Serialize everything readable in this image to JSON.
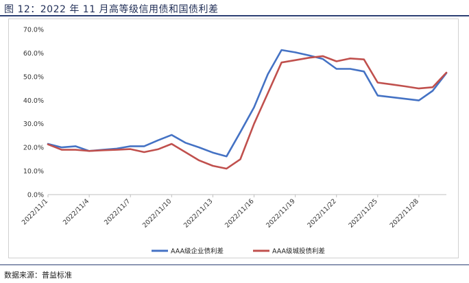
{
  "figure": {
    "title": "图 12：2022 年 11 月高等级信用债和国债利差",
    "source": "数据来源：普益标准"
  },
  "chart_data": {
    "type": "line",
    "title": "",
    "xlabel": "",
    "ylabel": "",
    "ylim": [
      0,
      70
    ],
    "y_tick_labels": [
      "0.0%",
      "10.0%",
      "20.0%",
      "30.0%",
      "40.0%",
      "50.0%",
      "60.0%",
      "70.0%"
    ],
    "x_tick_labels": [
      "2022/11/1",
      "2022/11/4",
      "2022/11/7",
      "2022/11/10",
      "2022/11/13",
      "2022/11/16",
      "2022/11/19",
      "2022/11/22",
      "2022/11/25",
      "2022/11/28"
    ],
    "x_tick_days": [
      1,
      4,
      7,
      10,
      13,
      16,
      19,
      22,
      25,
      28
    ],
    "xlim": [
      1,
      30
    ],
    "legend_position": "bottom",
    "grid": false,
    "series": [
      {
        "name": "AAA级企业债利差",
        "color": "#4472c4",
        "x": [
          1,
          2,
          3,
          4,
          5,
          6,
          7,
          8,
          9,
          10,
          11,
          12,
          13,
          14,
          15,
          16,
          17,
          18,
          19,
          20,
          21,
          22,
          23,
          24,
          25,
          26,
          27,
          28,
          29,
          30
        ],
        "values": [
          21.5,
          20.0,
          20.5,
          18.5,
          19.0,
          19.5,
          20.5,
          20.5,
          23.0,
          25.3,
          22.0,
          20.0,
          17.8,
          16.2,
          26.5,
          37.0,
          51.0,
          61.3,
          60.3,
          59.0,
          57.5,
          53.3,
          53.3,
          52.2,
          42.0,
          41.3,
          40.6,
          39.9,
          44.0,
          51.5
        ]
      },
      {
        "name": "AAA级城投债利差",
        "color": "#c0504d",
        "x": [
          1,
          2,
          3,
          4,
          5,
          6,
          7,
          8,
          9,
          10,
          11,
          12,
          13,
          14,
          15,
          16,
          17,
          18,
          19,
          20,
          21,
          22,
          23,
          24,
          25,
          26,
          27,
          28,
          29,
          30
        ],
        "values": [
          21.3,
          19.0,
          19.0,
          18.5,
          18.8,
          19.0,
          19.3,
          18.0,
          19.2,
          21.5,
          18.0,
          14.5,
          12.2,
          11.0,
          15.0,
          30.0,
          43.0,
          56.0,
          57.0,
          58.0,
          58.7,
          56.5,
          57.7,
          57.3,
          47.5,
          46.7,
          45.9,
          45.0,
          45.5,
          51.7
        ]
      }
    ]
  }
}
